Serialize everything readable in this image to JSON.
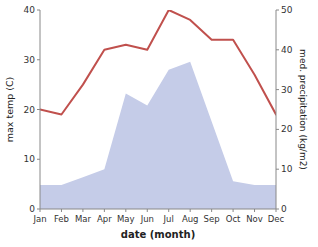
{
  "chart_data": {
    "type": "line",
    "xlabel": "date (month)",
    "ylabel": "max temp (C)",
    "y2label": "med. precipitation (kg/m2)",
    "categories": [
      "Jan",
      "Feb",
      "Mar",
      "Apr",
      "May",
      "Jun",
      "Jul",
      "Aug",
      "Sep",
      "Oct",
      "Nov",
      "Dec"
    ],
    "series": [
      {
        "type": "area",
        "axis": "y2",
        "color": "#c5cce8",
        "values": [
          6,
          6,
          8,
          10,
          29,
          26,
          35,
          37,
          22,
          7,
          6,
          6
        ]
      },
      {
        "type": "line",
        "color": "#c0504d",
        "values": [
          20,
          19,
          25,
          32,
          33,
          32,
          40,
          38,
          34,
          34,
          27,
          19
        ]
      }
    ],
    "ylim": [
      0,
      40
    ],
    "yticks": [
      0,
      10,
      20,
      30,
      40
    ],
    "y2lim": [
      0,
      50
    ],
    "y2ticks": [
      0,
      10,
      20,
      30,
      40,
      50
    ],
    "grid": false
  }
}
